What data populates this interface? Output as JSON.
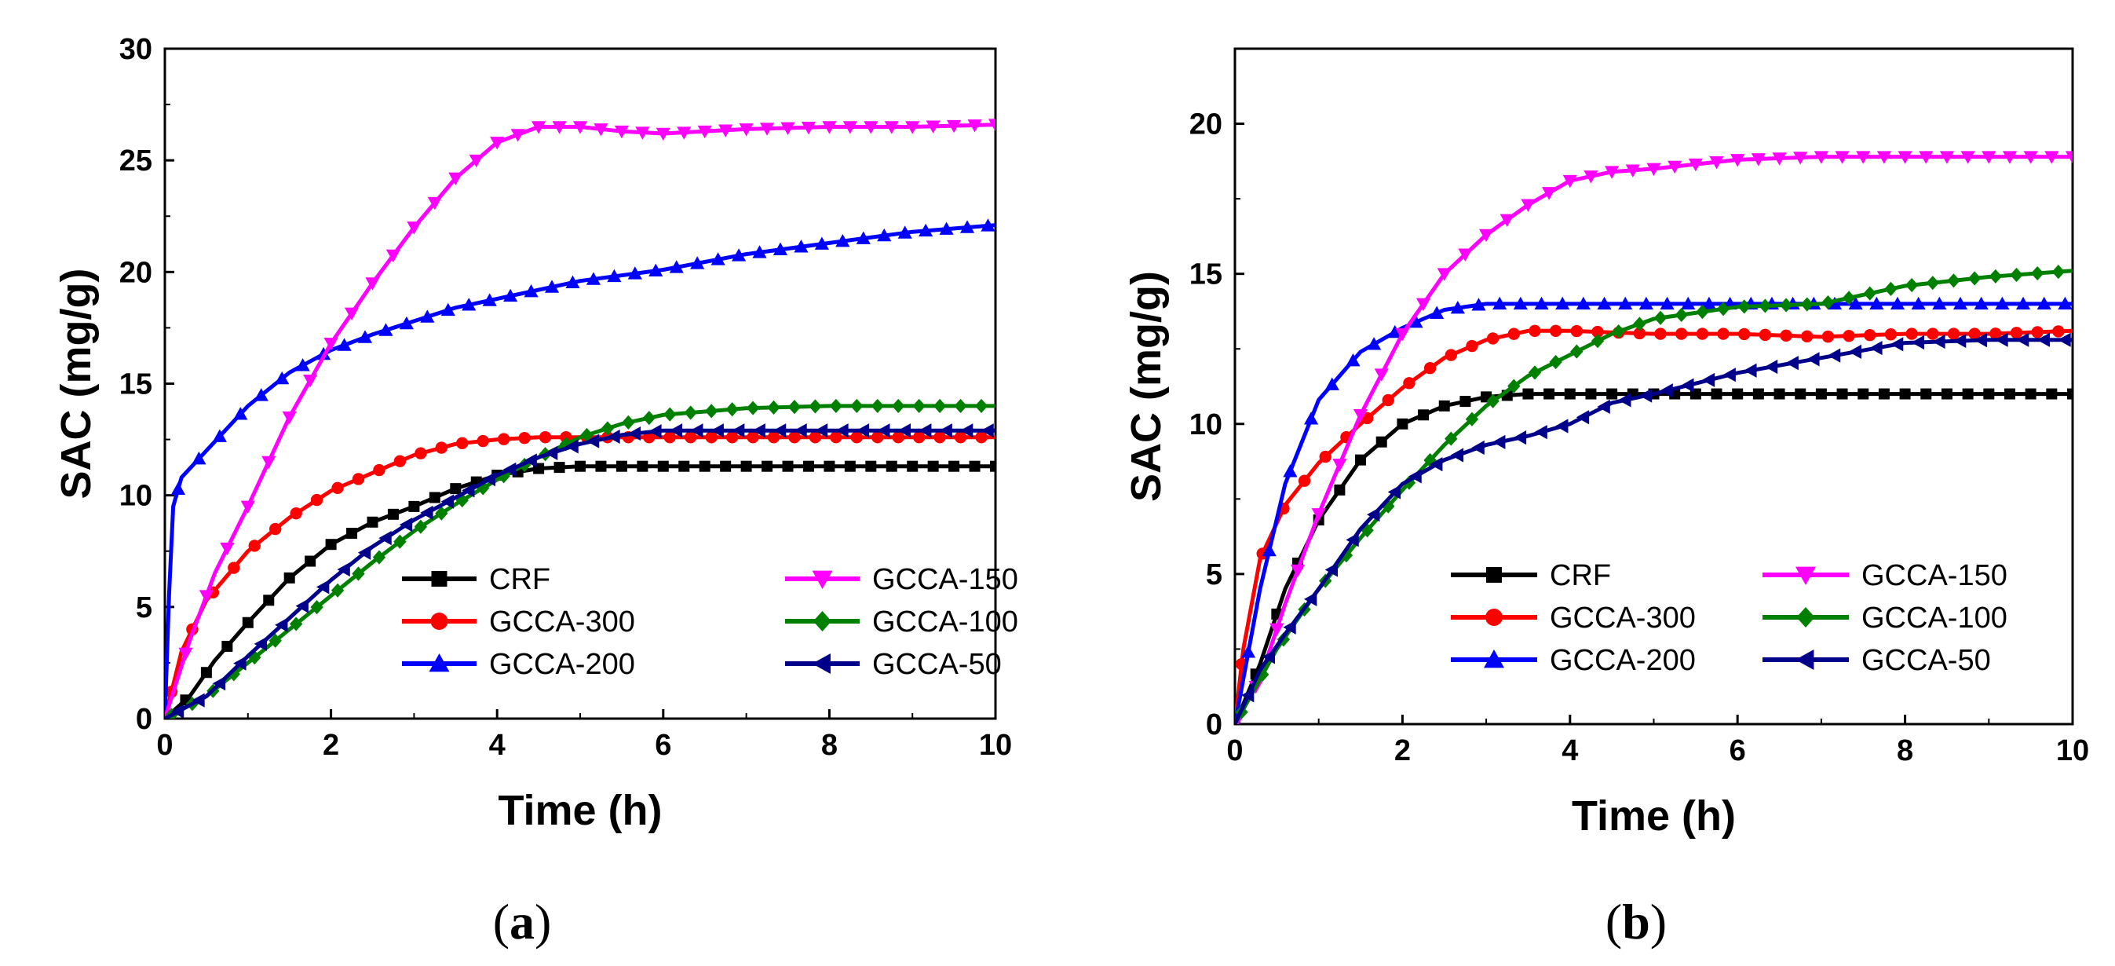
{
  "chart_data": [
    {
      "type": "line",
      "panel_label": "a",
      "xlabel": "Time (h)",
      "ylabel": "SAC (mg/g)",
      "xlim": [
        0,
        10
      ],
      "ylim": [
        0,
        30
      ],
      "xticks": [
        "0",
        "2",
        "4",
        "6",
        "8",
        "10"
      ],
      "yticks": [
        "0",
        "5",
        "10",
        "15",
        "20",
        "25",
        "30"
      ],
      "legend_position": "lower-right",
      "series": [
        {
          "name": "CRF",
          "color": "#000000",
          "marker": "square",
          "points": [
            [
              0,
              0
            ],
            [
              0.3,
              1.0
            ],
            [
              0.6,
              2.6
            ],
            [
              1.0,
              4.3
            ],
            [
              1.5,
              6.3
            ],
            [
              2.0,
              7.8
            ],
            [
              2.5,
              8.8
            ],
            [
              3.0,
              9.5
            ],
            [
              3.5,
              10.3
            ],
            [
              4.0,
              10.9
            ],
            [
              4.5,
              11.2
            ],
            [
              5.0,
              11.3
            ],
            [
              6.0,
              11.3
            ],
            [
              7.0,
              11.3
            ],
            [
              8.0,
              11.3
            ],
            [
              9.0,
              11.3
            ],
            [
              10.0,
              11.3
            ]
          ]
        },
        {
          "name": "GCCA-300",
          "color": "#ff0000",
          "marker": "circle",
          "points": [
            [
              0,
              0
            ],
            [
              0.2,
              3.0
            ],
            [
              0.5,
              5.3
            ],
            [
              1.0,
              7.5
            ],
            [
              1.5,
              9.0
            ],
            [
              2.0,
              10.2
            ],
            [
              2.5,
              11.0
            ],
            [
              3.0,
              11.8
            ],
            [
              3.5,
              12.3
            ],
            [
              4.0,
              12.5
            ],
            [
              4.5,
              12.6
            ],
            [
              5.0,
              12.6
            ],
            [
              6.0,
              12.6
            ],
            [
              7.0,
              12.6
            ],
            [
              8.0,
              12.6
            ],
            [
              9.0,
              12.6
            ],
            [
              10.0,
              12.6
            ]
          ]
        },
        {
          "name": "GCCA-200",
          "color": "#0000ff",
          "marker": "triangle-up",
          "points": [
            [
              0,
              0
            ],
            [
              0.05,
              5.5
            ],
            [
              0.1,
              9.5
            ],
            [
              0.2,
              10.8
            ],
            [
              0.5,
              12.0
            ],
            [
              1.0,
              14.0
            ],
            [
              1.5,
              15.5
            ],
            [
              2.0,
              16.5
            ],
            [
              2.5,
              17.2
            ],
            [
              3.0,
              17.8
            ],
            [
              3.5,
              18.4
            ],
            [
              4.0,
              18.8
            ],
            [
              5.0,
              19.6
            ],
            [
              6.0,
              20.1
            ],
            [
              7.0,
              20.8
            ],
            [
              8.0,
              21.3
            ],
            [
              9.0,
              21.8
            ],
            [
              10.0,
              22.1
            ]
          ]
        },
        {
          "name": "GCCA-150",
          "color": "#ff00ff",
          "marker": "triangle-down",
          "points": [
            [
              0,
              0
            ],
            [
              0.3,
              3.5
            ],
            [
              0.6,
              6.5
            ],
            [
              1.0,
              9.5
            ],
            [
              1.5,
              13.5
            ],
            [
              2.0,
              16.8
            ],
            [
              2.5,
              19.5
            ],
            [
              3.0,
              22.0
            ],
            [
              3.5,
              24.2
            ],
            [
              4.0,
              25.8
            ],
            [
              4.5,
              26.5
            ],
            [
              5.0,
              26.5
            ],
            [
              5.5,
              26.3
            ],
            [
              6.0,
              26.2
            ],
            [
              7.0,
              26.4
            ],
            [
              8.0,
              26.5
            ],
            [
              9.0,
              26.5
            ],
            [
              10.0,
              26.6
            ]
          ]
        },
        {
          "name": "GCCA-100",
          "color": "#008000",
          "marker": "diamond",
          "points": [
            [
              0,
              0
            ],
            [
              0.5,
              1.0
            ],
            [
              1.0,
              2.5
            ],
            [
              1.5,
              4.0
            ],
            [
              2.0,
              5.5
            ],
            [
              2.5,
              7.0
            ],
            [
              3.0,
              8.4
            ],
            [
              3.5,
              9.6
            ],
            [
              4.0,
              10.7
            ],
            [
              4.5,
              11.7
            ],
            [
              5.0,
              12.6
            ],
            [
              5.5,
              13.2
            ],
            [
              6.0,
              13.6
            ],
            [
              7.0,
              13.9
            ],
            [
              8.0,
              14.0
            ],
            [
              9.0,
              14.0
            ],
            [
              10.0,
              14.0
            ]
          ]
        },
        {
          "name": "GCCA-50",
          "color": "#00008b",
          "marker": "triangle-left",
          "points": [
            [
              0,
              0
            ],
            [
              0.5,
              1.0
            ],
            [
              1.0,
              2.8
            ],
            [
              1.5,
              4.5
            ],
            [
              2.0,
              6.2
            ],
            [
              2.5,
              7.7
            ],
            [
              3.0,
              8.9
            ],
            [
              3.5,
              9.9
            ],
            [
              4.0,
              10.9
            ],
            [
              4.5,
              11.7
            ],
            [
              5.0,
              12.3
            ],
            [
              5.5,
              12.7
            ],
            [
              6.0,
              12.9
            ],
            [
              7.0,
              12.9
            ],
            [
              8.0,
              12.9
            ],
            [
              9.0,
              12.9
            ],
            [
              10.0,
              12.9
            ]
          ]
        }
      ]
    },
    {
      "type": "line",
      "panel_label": "b",
      "xlabel": "Time (h)",
      "ylabel": "SAC (mg/g)",
      "xlim": [
        0,
        10
      ],
      "ylim": [
        0,
        22.5
      ],
      "xticks": [
        "0",
        "2",
        "4",
        "6",
        "8",
        "10"
      ],
      "yticks": [
        "0",
        "5",
        "10",
        "15",
        "20"
      ],
      "legend_position": "lower-right",
      "series": [
        {
          "name": "CRF",
          "color": "#000000",
          "marker": "square",
          "points": [
            [
              0,
              0
            ],
            [
              0.3,
              2.0
            ],
            [
              0.6,
              4.5
            ],
            [
              1.0,
              6.8
            ],
            [
              1.5,
              8.8
            ],
            [
              2.0,
              10.0
            ],
            [
              2.5,
              10.6
            ],
            [
              3.0,
              10.9
            ],
            [
              3.5,
              11.0
            ],
            [
              4.0,
              11.0
            ],
            [
              5.0,
              11.0
            ],
            [
              6.0,
              11.0
            ],
            [
              7.0,
              11.0
            ],
            [
              8.0,
              11.0
            ],
            [
              9.0,
              11.0
            ],
            [
              10.0,
              11.0
            ]
          ]
        },
        {
          "name": "GCCA-300",
          "color": "#ff0000",
          "marker": "circle",
          "points": [
            [
              0,
              0
            ],
            [
              0.1,
              2.5
            ],
            [
              0.3,
              5.5
            ],
            [
              0.6,
              7.3
            ],
            [
              1.0,
              8.7
            ],
            [
              1.5,
              10.0
            ],
            [
              2.0,
              11.2
            ],
            [
              2.5,
              12.2
            ],
            [
              3.0,
              12.8
            ],
            [
              3.5,
              13.1
            ],
            [
              4.0,
              13.1
            ],
            [
              5.0,
              13.0
            ],
            [
              6.0,
              13.0
            ],
            [
              7.0,
              12.9
            ],
            [
              8.0,
              13.0
            ],
            [
              9.0,
              13.0
            ],
            [
              10.0,
              13.1
            ]
          ]
        },
        {
          "name": "GCCA-200",
          "color": "#0000ff",
          "marker": "triangle-up",
          "points": [
            [
              0,
              0
            ],
            [
              0.1,
              1.5
            ],
            [
              0.3,
              4.5
            ],
            [
              0.6,
              8.0
            ],
            [
              1.0,
              10.8
            ],
            [
              1.5,
              12.4
            ],
            [
              2.0,
              13.2
            ],
            [
              2.5,
              13.8
            ],
            [
              3.0,
              14.0
            ],
            [
              4.0,
              14.0
            ],
            [
              5.0,
              14.0
            ],
            [
              6.0,
              14.0
            ],
            [
              7.0,
              14.0
            ],
            [
              8.0,
              14.0
            ],
            [
              9.0,
              14.0
            ],
            [
              10.0,
              14.0
            ]
          ]
        },
        {
          "name": "GCCA-150",
          "color": "#ff00ff",
          "marker": "triangle-down",
          "points": [
            [
              0,
              0
            ],
            [
              0.3,
              1.5
            ],
            [
              0.6,
              4.0
            ],
            [
              1.0,
              7.0
            ],
            [
              1.5,
              10.3
            ],
            [
              2.0,
              13.0
            ],
            [
              2.5,
              15.0
            ],
            [
              3.0,
              16.3
            ],
            [
              3.5,
              17.3
            ],
            [
              4.0,
              18.1
            ],
            [
              4.5,
              18.4
            ],
            [
              5.0,
              18.5
            ],
            [
              6.0,
              18.8
            ],
            [
              7.0,
              18.9
            ],
            [
              8.0,
              18.9
            ],
            [
              9.0,
              18.9
            ],
            [
              10.0,
              18.9
            ]
          ]
        },
        {
          "name": "GCCA-100",
          "color": "#008000",
          "marker": "diamond",
          "points": [
            [
              0,
              0
            ],
            [
              0.5,
              2.5
            ],
            [
              1.0,
              4.5
            ],
            [
              1.5,
              6.2
            ],
            [
              2.0,
              7.8
            ],
            [
              2.5,
              9.3
            ],
            [
              3.0,
              10.6
            ],
            [
              3.5,
              11.6
            ],
            [
              4.0,
              12.3
            ],
            [
              4.5,
              13.0
            ],
            [
              5.0,
              13.5
            ],
            [
              6.0,
              13.9
            ],
            [
              7.0,
              14.0
            ],
            [
              8.0,
              14.6
            ],
            [
              9.0,
              14.9
            ],
            [
              10.0,
              15.1
            ]
          ]
        },
        {
          "name": "GCCA-50",
          "color": "#00008b",
          "marker": "triangle-left",
          "points": [
            [
              0,
              0
            ],
            [
              0.3,
              1.8
            ],
            [
              0.6,
              3.0
            ],
            [
              1.0,
              4.5
            ],
            [
              1.5,
              6.5
            ],
            [
              2.0,
              8.0
            ],
            [
              2.5,
              8.8
            ],
            [
              3.0,
              9.3
            ],
            [
              3.5,
              9.6
            ],
            [
              4.0,
              10.0
            ],
            [
              4.5,
              10.7
            ],
            [
              5.0,
              11.0
            ],
            [
              6.0,
              11.7
            ],
            [
              7.0,
              12.2
            ],
            [
              8.0,
              12.7
            ],
            [
              9.0,
              12.8
            ],
            [
              10.0,
              12.8
            ]
          ]
        }
      ]
    }
  ]
}
